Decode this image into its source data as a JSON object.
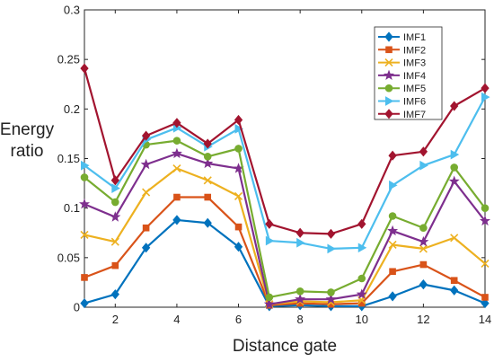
{
  "chart_data": {
    "type": "line",
    "xlabel": "Distance gate",
    "ylabel_lines": [
      "Energy",
      "ratio"
    ],
    "x": [
      1,
      2,
      3,
      4,
      5,
      6,
      7,
      8,
      9,
      10,
      11,
      12,
      13,
      14
    ],
    "xlim": [
      1,
      14
    ],
    "ylim": [
      0,
      0.3
    ],
    "xticks": [
      2,
      4,
      6,
      8,
      10,
      12,
      14
    ],
    "yticks": [
      0,
      0.05,
      0.1,
      0.15,
      0.2,
      0.25,
      0.3
    ],
    "ytick_labels": [
      "0",
      "0.05",
      "0.1",
      "0.15",
      "0.2",
      "0.25",
      "0.3"
    ],
    "grid": false,
    "legend_position": "top-right",
    "series": [
      {
        "name": "IMF1",
        "color": "#0072BD",
        "marker": "diamond",
        "values": [
          0.004,
          0.013,
          0.06,
          0.088,
          0.085,
          0.061,
          0.001,
          0.002,
          0.001,
          0.001,
          0.011,
          0.023,
          0.017,
          0.004
        ]
      },
      {
        "name": "IMF2",
        "color": "#D95319",
        "marker": "square",
        "values": [
          0.03,
          0.042,
          0.08,
          0.111,
          0.111,
          0.081,
          0.002,
          0.004,
          0.003,
          0.004,
          0.036,
          0.043,
          0.027,
          0.01
        ]
      },
      {
        "name": "IMF3",
        "color": "#EDB120",
        "marker": "x",
        "values": [
          0.073,
          0.066,
          0.116,
          0.14,
          0.128,
          0.112,
          0.003,
          0.006,
          0.005,
          0.007,
          0.063,
          0.059,
          0.07,
          0.044
        ]
      },
      {
        "name": "IMF4",
        "color": "#7E2F8E",
        "marker": "star",
        "values": [
          0.104,
          0.091,
          0.144,
          0.155,
          0.145,
          0.14,
          0.003,
          0.008,
          0.008,
          0.013,
          0.077,
          0.066,
          0.127,
          0.087
        ]
      },
      {
        "name": "IMF5",
        "color": "#77AC30",
        "marker": "circle",
        "values": [
          0.131,
          0.106,
          0.164,
          0.168,
          0.152,
          0.16,
          0.01,
          0.016,
          0.015,
          0.029,
          0.092,
          0.08,
          0.141,
          0.1
        ]
      },
      {
        "name": "IMF6",
        "color": "#4DBEEE",
        "marker": "triangle-right",
        "values": [
          0.143,
          0.12,
          0.169,
          0.181,
          0.162,
          0.18,
          0.067,
          0.065,
          0.059,
          0.06,
          0.123,
          0.143,
          0.154,
          0.212
        ]
      },
      {
        "name": "IMF7",
        "color": "#A2142F",
        "marker": "diamond",
        "values": [
          0.241,
          0.128,
          0.173,
          0.186,
          0.165,
          0.189,
          0.084,
          0.075,
          0.074,
          0.084,
          0.153,
          0.157,
          0.203,
          0.221
        ]
      }
    ]
  }
}
